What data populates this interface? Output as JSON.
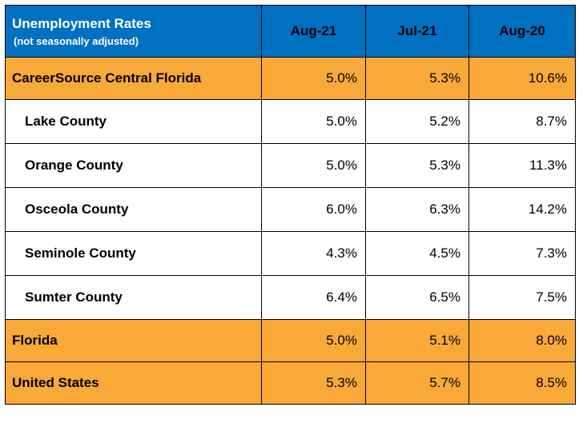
{
  "header": {
    "title": "Unemployment Rates",
    "subtitle": "(not seasonally adjusted)",
    "columns": [
      "Aug-21",
      "Jul-21",
      "Aug-20"
    ]
  },
  "rows": [
    {
      "name": "CareerSource Central Florida",
      "values": [
        "5.0%",
        "5.3%",
        "10.6%"
      ],
      "kind": "summary"
    },
    {
      "name": "Lake County",
      "values": [
        "5.0%",
        "5.2%",
        "8.7%"
      ],
      "kind": "county"
    },
    {
      "name": "Orange County",
      "values": [
        "5.0%",
        "5.3%",
        "11.3%"
      ],
      "kind": "county"
    },
    {
      "name": "Osceola County",
      "values": [
        "6.0%",
        "6.3%",
        "14.2%"
      ],
      "kind": "county"
    },
    {
      "name": "Seminole County",
      "values": [
        "4.3%",
        "4.5%",
        "7.3%"
      ],
      "kind": "county"
    },
    {
      "name": "Sumter County",
      "values": [
        "6.4%",
        "6.5%",
        "7.5%"
      ],
      "kind": "county"
    },
    {
      "name": "Florida",
      "values": [
        "5.0%",
        "5.1%",
        "8.0%"
      ],
      "kind": "summary"
    },
    {
      "name": "United States",
      "values": [
        "5.3%",
        "5.7%",
        "8.5%"
      ],
      "kind": "summary"
    }
  ],
  "colors": {
    "header_bg": "#0070c0",
    "summary_bg": "#f8a938",
    "county_bg": "#ffffff"
  },
  "chart_data": {
    "type": "table",
    "title": "Unemployment Rates",
    "subtitle": "(not seasonally adjusted)",
    "columns": [
      "Aug-21",
      "Jul-21",
      "Aug-20"
    ],
    "rows": [
      {
        "label": "CareerSource Central Florida",
        "values": [
          5.0,
          5.3,
          10.6
        ]
      },
      {
        "label": "Lake County",
        "values": [
          5.0,
          5.2,
          8.7
        ]
      },
      {
        "label": "Orange County",
        "values": [
          5.0,
          5.3,
          11.3
        ]
      },
      {
        "label": "Osceola County",
        "values": [
          6.0,
          6.3,
          14.2
        ]
      },
      {
        "label": "Seminole County",
        "values": [
          4.3,
          4.5,
          7.3
        ]
      },
      {
        "label": "Sumter County",
        "values": [
          6.4,
          6.5,
          7.5
        ]
      },
      {
        "label": "Florida",
        "values": [
          5.0,
          5.1,
          8.0
        ]
      },
      {
        "label": "United States",
        "values": [
          5.3,
          5.7,
          8.5
        ]
      }
    ]
  }
}
